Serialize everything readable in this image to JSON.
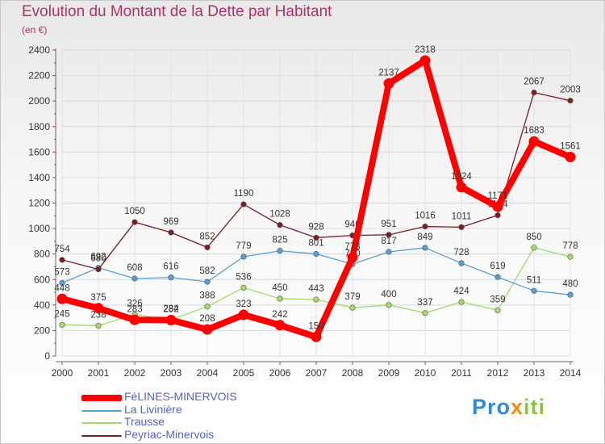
{
  "title": "Evolution du Montant de la Dette par Habitant",
  "subtitle": "(en €)",
  "brand": {
    "part1": "Pro",
    "part2": "x",
    "part3": "iti"
  },
  "chart_data": {
    "type": "line",
    "title": "Evolution du Montant de la Dette par Habitant",
    "unit": "(en €)",
    "x": [
      "2000",
      "2001",
      "2002",
      "2003",
      "2004",
      "2005",
      "2006",
      "2007",
      "2008",
      "2009",
      "2010",
      "2011",
      "2012",
      "2013",
      "2014"
    ],
    "ylim": [
      0,
      2400
    ],
    "yticks": [
      0,
      200,
      400,
      600,
      800,
      1000,
      1200,
      1400,
      1600,
      1800,
      2000,
      2200,
      2400
    ],
    "grid": true,
    "legend_position": "bottom-left",
    "series": [
      {
        "name": "Trausse",
        "color": "#9fdc6a",
        "values": [
          245,
          238,
          326,
          284,
          388,
          536,
          450,
          443,
          379,
          400,
          337,
          424,
          359,
          850,
          778
        ]
      },
      {
        "name": "La Livinière",
        "color": "#5a9fd4",
        "values": [
          573,
          692,
          608,
          616,
          582,
          779,
          825,
          801,
          720,
          817,
          849,
          728,
          619,
          511,
          480
        ]
      },
      {
        "name": "Peyriac-Minervois",
        "color": "#7a1f23",
        "values": [
          754,
          680,
          1050,
          969,
          852,
          1190,
          1028,
          928,
          946,
          951,
          1016,
          1011,
          1104,
          2067,
          2003
        ]
      },
      {
        "name": "FéLINES-MINERVOIS",
        "color": "#ff0000",
        "values": [
          448,
          375,
          283,
          282,
          208,
          323,
          242,
          150,
          773,
          2137,
          2318,
          1324,
          1171,
          1683,
          1561
        ]
      }
    ],
    "legend_order": [
      "FéLINES-MINERVOIS",
      "La Livinière",
      "Trausse",
      "Peyriac-Minervois"
    ]
  }
}
